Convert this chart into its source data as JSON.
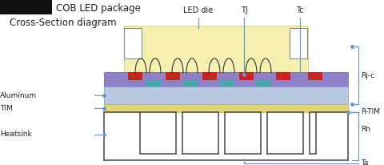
{
  "title1": "COB LED package",
  "title2": "Cross-Section diagram",
  "labels": {
    "LED_die": "LED die",
    "TJ": "TJ",
    "Tc": "Tc",
    "Rjc": "Rj-c",
    "Aluminum": "Aluminum",
    "RTIM": "R-TIM",
    "TIM": "TIM",
    "Rh": "Rh",
    "Heatsink": "Heatsink",
    "Ta": "Ta"
  },
  "colors": {
    "background": "#ffffff",
    "black_box": "#111111",
    "yellow_encapsulant": "#f5f0b0",
    "pcb_purple_top": "#9984c0",
    "aluminum_blue": "#b8c8e0",
    "tim_yellow": "#e8e080",
    "heatsink_gray": "#c0c0c0",
    "red_pad": "#cc2222",
    "cyan_pad": "#44aaaa",
    "wire": "#333333",
    "annotation_line": "#6699cc",
    "text_color": "#222222"
  }
}
